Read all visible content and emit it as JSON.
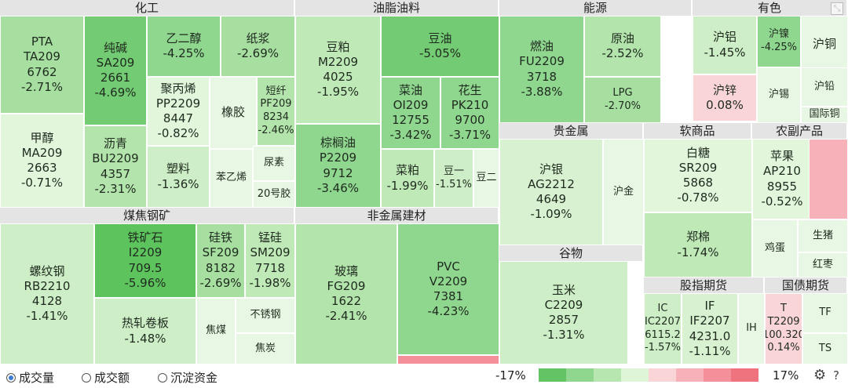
{
  "legend": {
    "min_label": "-17%",
    "max_label": "17%",
    "colors": [
      "#63c463",
      "#8fd68f",
      "#b8e6b0",
      "#dff5d8",
      "#f9d5d8",
      "#f6b2b8",
      "#f39099",
      "#ef737f"
    ]
  },
  "footer": {
    "options": [
      {
        "label": "成交量",
        "selected": true
      },
      {
        "label": "成交额",
        "selected": false
      },
      {
        "label": "沉淀资金",
        "selected": false
      }
    ]
  },
  "icons": {
    "corner": "expand-icon",
    "settings": "gear-icon",
    "help": "help-icon"
  },
  "chart_data": {
    "type": "treemap",
    "sectors": [
      {
        "name": "化工",
        "items": [
          {
            "label": "PTA",
            "code": "TA209",
            "price": "6762",
            "change": "-2.71%"
          },
          {
            "label": "纯碱",
            "code": "SA209",
            "price": "2661",
            "change": "-4.69%"
          },
          {
            "label": "乙二醇",
            "code": "",
            "price": "",
            "change": "-4.25%"
          },
          {
            "label": "纸浆",
            "code": "",
            "price": "",
            "change": "-2.69%"
          },
          {
            "label": "甲醇",
            "code": "MA209",
            "price": "2663",
            "change": "-0.71%"
          },
          {
            "label": "聚丙烯",
            "code": "PP2209",
            "price": "8447",
            "change": "-0.82%"
          },
          {
            "label": "橡胶",
            "code": "",
            "price": "",
            "change": ""
          },
          {
            "label": "短纤",
            "code": "PF209",
            "price": "8234",
            "change": "-2.46%"
          },
          {
            "label": "沥青",
            "code": "BU2209",
            "price": "4357",
            "change": "-2.31%"
          },
          {
            "label": "塑料",
            "code": "",
            "price": "",
            "change": "-1.36%"
          },
          {
            "label": "苯乙烯",
            "code": "",
            "price": "",
            "change": ""
          },
          {
            "label": "尿素",
            "code": "",
            "price": "",
            "change": ""
          },
          {
            "label": "20号胶",
            "code": "",
            "price": "",
            "change": ""
          }
        ]
      },
      {
        "name": "煤焦钢矿",
        "items": [
          {
            "label": "螺纹钢",
            "code": "RB2210",
            "price": "4128",
            "change": "-1.41%"
          },
          {
            "label": "铁矿石",
            "code": "I2209",
            "price": "709.5",
            "change": "-5.96%"
          },
          {
            "label": "硅铁",
            "code": "SF209",
            "price": "8182",
            "change": "-2.69%"
          },
          {
            "label": "锰硅",
            "code": "SM209",
            "price": "7718",
            "change": "-1.98%"
          },
          {
            "label": "热轧卷板",
            "code": "",
            "price": "",
            "change": "-1.48%"
          },
          {
            "label": "焦煤",
            "code": "",
            "price": "",
            "change": ""
          },
          {
            "label": "不锈钢",
            "code": "",
            "price": "",
            "change": ""
          },
          {
            "label": "焦炭",
            "code": "",
            "price": "",
            "change": ""
          }
        ]
      },
      {
        "name": "油脂油料",
        "items": [
          {
            "label": "豆粕",
            "code": "M2209",
            "price": "4025",
            "change": "-1.95%"
          },
          {
            "label": "豆油",
            "code": "",
            "price": "",
            "change": "-5.05%"
          },
          {
            "label": "菜油",
            "code": "OI209",
            "price": "12755",
            "change": "-3.42%"
          },
          {
            "label": "花生",
            "code": "PK210",
            "price": "9700",
            "change": "-3.71%"
          },
          {
            "label": "棕榈油",
            "code": "P2209",
            "price": "9712",
            "change": "-3.46%"
          },
          {
            "label": "菜粕",
            "code": "",
            "price": "",
            "change": "-1.99%"
          },
          {
            "label": "豆一",
            "code": "",
            "price": "",
            "change": "-1.51%"
          },
          {
            "label": "豆二",
            "code": "",
            "price": "",
            "change": ""
          }
        ]
      },
      {
        "name": "非金属建材",
        "items": [
          {
            "label": "玻璃",
            "code": "FG209",
            "price": "1622",
            "change": "-2.41%"
          },
          {
            "label": "PVC",
            "code": "V2209",
            "price": "7381",
            "change": "-4.23%"
          }
        ]
      },
      {
        "name": "能源",
        "items": [
          {
            "label": "燃油",
            "code": "FU2209",
            "price": "3718",
            "change": "-3.88%"
          },
          {
            "label": "原油",
            "code": "",
            "price": "",
            "change": "-2.52%"
          },
          {
            "label": "LPG",
            "code": "",
            "price": "",
            "change": "-2.70%"
          }
        ]
      },
      {
        "name": "有色",
        "items": [
          {
            "label": "沪铝",
            "code": "",
            "price": "",
            "change": "-1.45%"
          },
          {
            "label": "沪镍",
            "code": "",
            "price": "",
            "change": "-4.25%"
          },
          {
            "label": "沪铜",
            "code": "",
            "price": "",
            "change": ""
          },
          {
            "label": "沪锌",
            "code": "",
            "price": "",
            "change": "0.08%"
          },
          {
            "label": "沪锡",
            "code": "",
            "price": "",
            "change": ""
          },
          {
            "label": "沪铅",
            "code": "",
            "price": "",
            "change": ""
          },
          {
            "label": "国际铜",
            "code": "",
            "price": "",
            "change": ""
          }
        ]
      },
      {
        "name": "贵金属",
        "items": [
          {
            "label": "沪银",
            "code": "AG2212",
            "price": "4649",
            "change": "-1.09%"
          },
          {
            "label": "沪金",
            "code": "",
            "price": "",
            "change": ""
          }
        ]
      },
      {
        "name": "谷物",
        "items": [
          {
            "label": "玉米",
            "code": "C2209",
            "price": "2857",
            "change": "-1.31%"
          }
        ]
      },
      {
        "name": "软商品",
        "items": [
          {
            "label": "白糖",
            "code": "SR209",
            "price": "5868",
            "change": "-0.78%"
          },
          {
            "label": "郑棉",
            "code": "",
            "price": "",
            "change": "-1.74%"
          }
        ]
      },
      {
        "name": "农副产品",
        "items": [
          {
            "label": "苹果",
            "code": "AP210",
            "price": "8955",
            "change": "-0.52%"
          },
          {
            "label": "鸡蛋",
            "code": "",
            "price": "",
            "change": ""
          },
          {
            "label": "生猪",
            "code": "",
            "price": "",
            "change": ""
          },
          {
            "label": "红枣",
            "code": "",
            "price": "",
            "change": ""
          }
        ]
      },
      {
        "name": "股指期货",
        "items": [
          {
            "label": "IC",
            "code": "IC2207",
            "price": "6115.2",
            "change": "-1.57%"
          },
          {
            "label": "IF",
            "code": "IF2207",
            "price": "4231.0",
            "change": "-1.11%"
          },
          {
            "label": "IH",
            "code": "",
            "price": "",
            "change": ""
          }
        ]
      },
      {
        "name": "国债期货",
        "items": [
          {
            "label": "T",
            "code": "T2209",
            "price": "100.320",
            "change": "0.14%"
          },
          {
            "label": "TF",
            "code": "",
            "price": "",
            "change": ""
          },
          {
            "label": "TS",
            "code": "",
            "price": "",
            "change": ""
          }
        ]
      }
    ]
  }
}
